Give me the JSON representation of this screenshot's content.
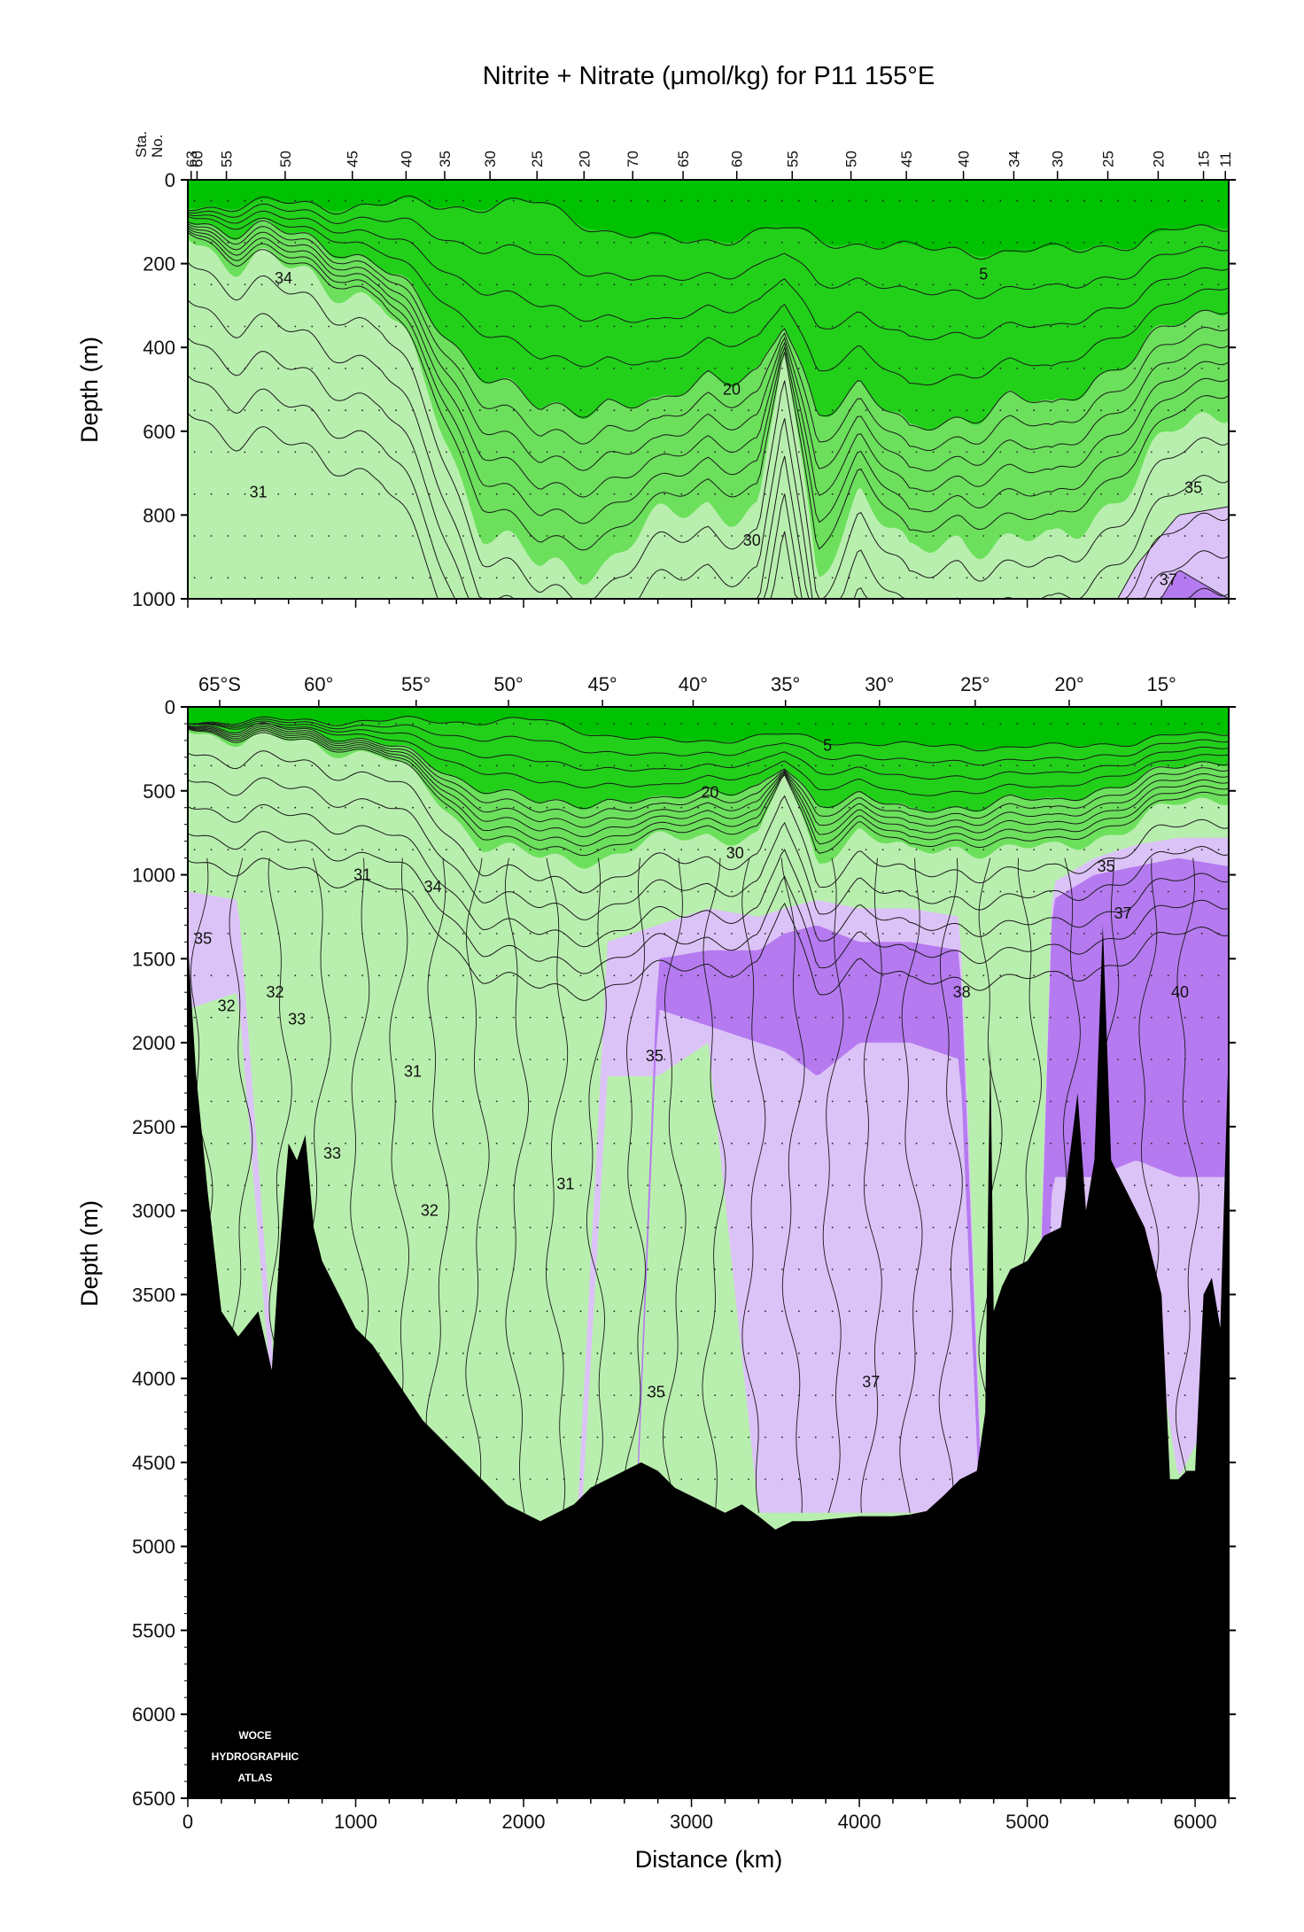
{
  "title": "Nitrite + Nitrate (μmol/kg) for P11 155°E",
  "watermark": [
    "WOCE",
    "HYDROGRAPHIC",
    "ATLAS"
  ],
  "colors": {
    "band_lt5": "#00c200",
    "band_5_20": "#22d01a",
    "band_20_30": "#6ce05c",
    "band_30_35": "#b9efae",
    "band_35_37": "#dcc3f7",
    "band_37_40": "#b67af0",
    "band_gt40": "#9a56e2",
    "bathymetry": "#000000"
  },
  "chart_data": [
    {
      "type": "heatmap",
      "panel": "upper",
      "title": "Nitrite + Nitrate (μmol/kg) for P11 155°E",
      "xlabel": "",
      "ylabel": "Depth (m)",
      "xlim": [
        0,
        6200
      ],
      "ylim": [
        1000,
        0
      ],
      "yticks": [
        0,
        200,
        400,
        600,
        800,
        1000
      ],
      "station_axis_label": [
        "Sta.",
        "No."
      ],
      "stations": [
        {
          "label": "63",
          "x": 20
        },
        {
          "label": "60",
          "x": 55
        },
        {
          "label": "55",
          "x": 230
        },
        {
          "label": "50",
          "x": 580
        },
        {
          "label": "45",
          "x": 980
        },
        {
          "label": "40",
          "x": 1300
        },
        {
          "label": "35",
          "x": 1530
        },
        {
          "label": "30",
          "x": 1800
        },
        {
          "label": "25",
          "x": 2080
        },
        {
          "label": "20",
          "x": 2360
        },
        {
          "label": "70",
          "x": 2650
        },
        {
          "label": "65",
          "x": 2950
        },
        {
          "label": "60",
          "x": 3270
        },
        {
          "label": "55",
          "x": 3600
        },
        {
          "label": "50",
          "x": 3950
        },
        {
          "label": "45",
          "x": 4280
        },
        {
          "label": "40",
          "x": 4620
        },
        {
          "label": "34",
          "x": 4920
        },
        {
          "label": "30",
          "x": 5180
        },
        {
          "label": "25",
          "x": 5480
        },
        {
          "label": "20",
          "x": 5780
        },
        {
          "label": "15",
          "x": 6050
        },
        {
          "label": "11",
          "x": 6180
        }
      ],
      "contour_levels": [
        5,
        10,
        15,
        20,
        22,
        24,
        26,
        28,
        30,
        31,
        32,
        33,
        34,
        35,
        36,
        37,
        38,
        39,
        40
      ],
      "contour_labels": [
        {
          "text": "34",
          "x": 570,
          "y": 235
        },
        {
          "text": "5",
          "x": 4740,
          "y": 225
        },
        {
          "text": "20",
          "x": 3240,
          "y": 500
        },
        {
          "text": "31",
          "x": 420,
          "y": 745
        },
        {
          "text": "30",
          "x": 3360,
          "y": 860
        },
        {
          "text": "35",
          "x": 5990,
          "y": 735
        },
        {
          "text": "37",
          "x": 5840,
          "y": 955
        }
      ]
    },
    {
      "type": "heatmap",
      "panel": "lower",
      "xlabel": "Distance (km)",
      "ylabel": "Depth (m)",
      "xlim": [
        0,
        6200
      ],
      "ylim": [
        6500,
        0
      ],
      "xticks": [
        0,
        1000,
        2000,
        3000,
        4000,
        5000,
        6000
      ],
      "yticks": [
        0,
        500,
        1000,
        1500,
        2000,
        2500,
        3000,
        3500,
        4000,
        4500,
        5000,
        5500,
        6000,
        6500
      ],
      "latitude_ticks": [
        {
          "label": "65°S",
          "x": 190
        },
        {
          "label": "60°",
          "x": 780
        },
        {
          "label": "55°",
          "x": 1360
        },
        {
          "label": "50°",
          "x": 1910
        },
        {
          "label": "45°",
          "x": 2470
        },
        {
          "label": "40°",
          "x": 3010
        },
        {
          "label": "35°",
          "x": 3560
        },
        {
          "label": "30°",
          "x": 4120
        },
        {
          "label": "25°",
          "x": 4690
        },
        {
          "label": "20°",
          "x": 5250
        },
        {
          "label": "15°",
          "x": 5800
        }
      ],
      "contour_labels": [
        {
          "text": "5",
          "x": 3810,
          "y": 230
        },
        {
          "text": "20",
          "x": 3110,
          "y": 510
        },
        {
          "text": "30",
          "x": 3260,
          "y": 870
        },
        {
          "text": "31",
          "x": 1040,
          "y": 1000
        },
        {
          "text": "34",
          "x": 1460,
          "y": 1070
        },
        {
          "text": "35",
          "x": 5470,
          "y": 950
        },
        {
          "text": "37",
          "x": 5570,
          "y": 1230
        },
        {
          "text": "35",
          "x": 90,
          "y": 1380
        },
        {
          "text": "32",
          "x": 230,
          "y": 1780
        },
        {
          "text": "32",
          "x": 520,
          "y": 1700
        },
        {
          "text": "33",
          "x": 650,
          "y": 1860
        },
        {
          "text": "38",
          "x": 4610,
          "y": 1700
        },
        {
          "text": "40",
          "x": 5910,
          "y": 1700
        },
        {
          "text": "35",
          "x": 2780,
          "y": 2080
        },
        {
          "text": "31",
          "x": 1340,
          "y": 2170
        },
        {
          "text": "33",
          "x": 860,
          "y": 2660
        },
        {
          "text": "31",
          "x": 2250,
          "y": 2840
        },
        {
          "text": "32",
          "x": 1440,
          "y": 3000
        },
        {
          "text": "37",
          "x": 4070,
          "y": 4020
        },
        {
          "text": "35",
          "x": 2790,
          "y": 4080
        }
      ],
      "bathymetry": {
        "x": [
          0,
          50,
          120,
          200,
          300,
          420,
          500,
          550,
          600,
          650,
          700,
          750,
          800,
          900,
          1000,
          1100,
          1200,
          1300,
          1400,
          1500,
          1600,
          1700,
          1800,
          1900,
          2000,
          2100,
          2200,
          2300,
          2400,
          2500,
          2600,
          2700,
          2800,
          2900,
          3000,
          3100,
          3200,
          3300,
          3400,
          3500,
          3600,
          3700,
          3800,
          3900,
          4000,
          4100,
          4200,
          4300,
          4400,
          4500,
          4600,
          4700,
          4750,
          4780,
          4800,
          4850,
          4900,
          5000,
          5100,
          5200,
          5300,
          5350,
          5400,
          5450,
          5500,
          5550,
          5600,
          5700,
          5800,
          5850,
          5900,
          5950,
          6000,
          6050,
          6100,
          6150,
          6200
        ],
        "depth": [
          1400,
          2200,
          2900,
          3600,
          3750,
          3600,
          3950,
          3200,
          2600,
          2700,
          2550,
          3100,
          3300,
          3500,
          3700,
          3800,
          3950,
          4100,
          4250,
          4350,
          4450,
          4550,
          4650,
          4750,
          4800,
          4850,
          4800,
          4750,
          4650,
          4600,
          4550,
          4500,
          4550,
          4650,
          4700,
          4750,
          4800,
          4750,
          4820,
          4900,
          4850,
          4850,
          4840,
          4830,
          4820,
          4820,
          4820,
          4810,
          4790,
          4700,
          4600,
          4550,
          4200,
          2000,
          3600,
          3450,
          3350,
          3300,
          3150,
          3100,
          2300,
          3000,
          2700,
          1300,
          2700,
          2800,
          2900,
          3100,
          3500,
          4600,
          4600,
          4550,
          4550,
          3500,
          3400,
          3700,
          2000
        ]
      },
      "bathymetry_color": "#000000"
    }
  ]
}
